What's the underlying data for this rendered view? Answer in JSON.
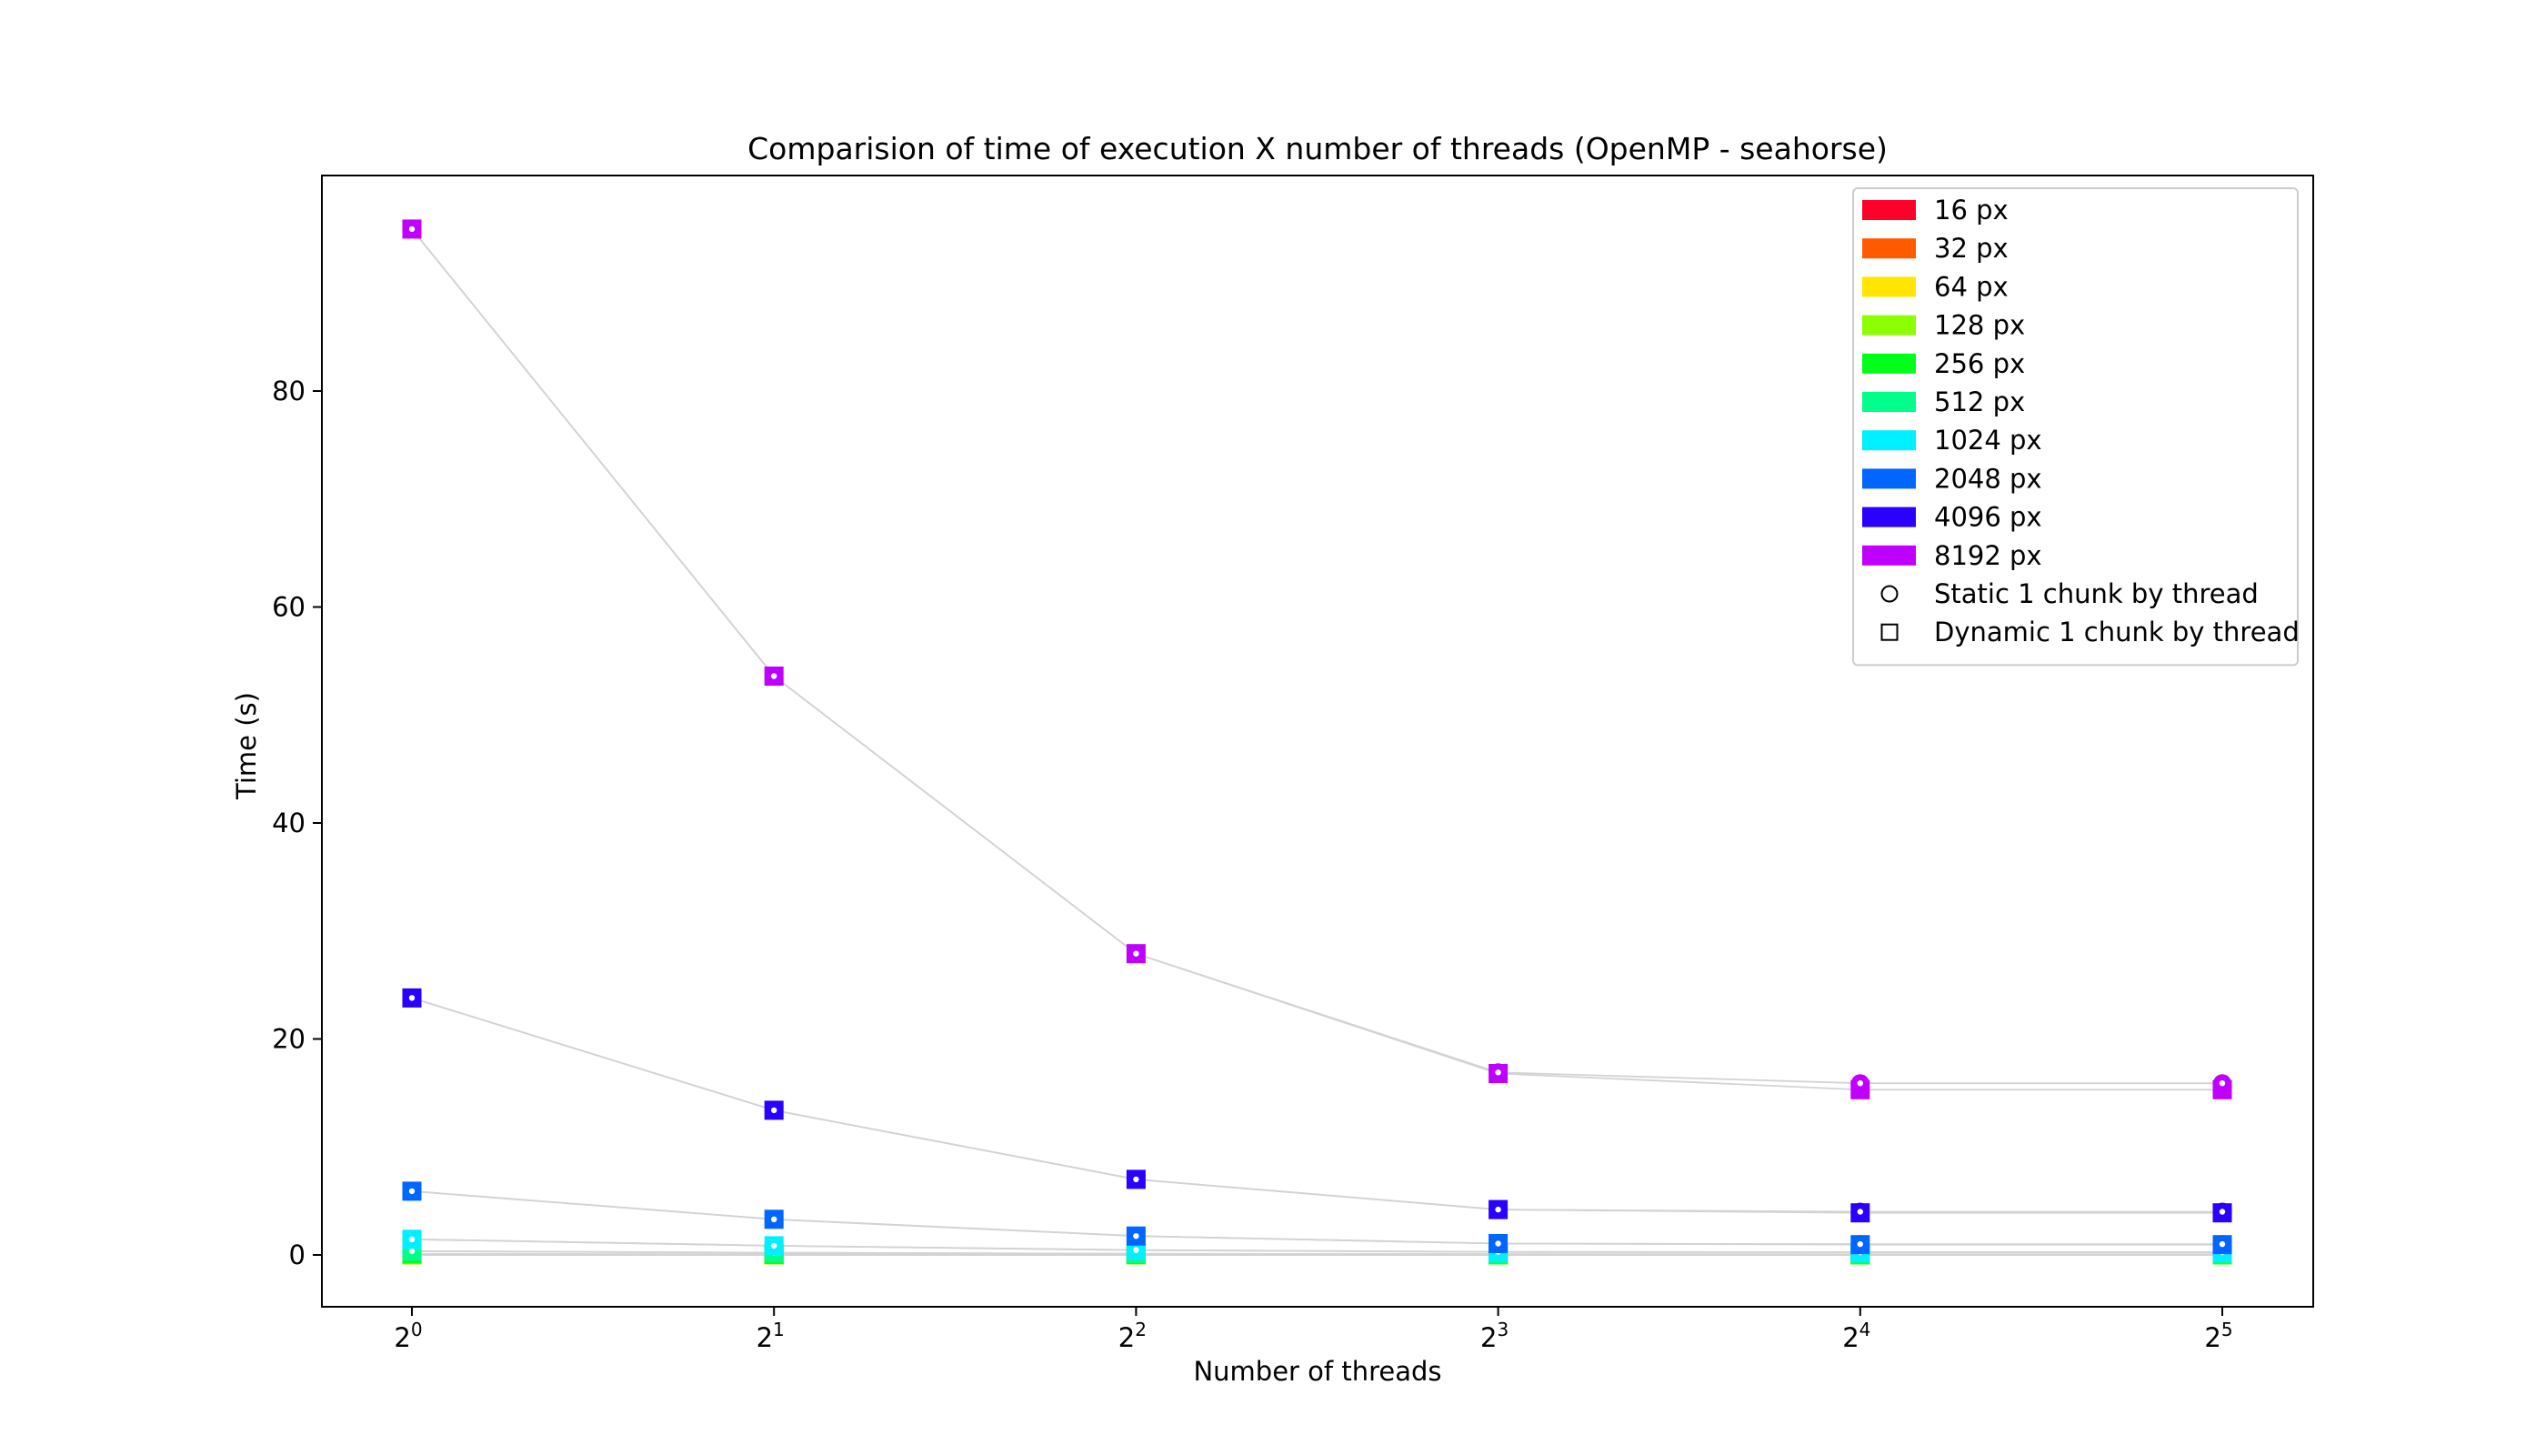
{
  "chart_data": {
    "type": "scatter",
    "title": "Comparision of time of execution X number of threads (OpenMP - seahorse)",
    "xlabel": "Number of threads",
    "ylabel": "Time (s)",
    "x_scale": "log2",
    "x": [
      1,
      2,
      4,
      8,
      16,
      32
    ],
    "xticks": [
      {
        "value": 1,
        "base": "2",
        "exp": "0"
      },
      {
        "value": 2,
        "base": "2",
        "exp": "1"
      },
      {
        "value": 4,
        "base": "2",
        "exp": "2"
      },
      {
        "value": 8,
        "base": "2",
        "exp": "3"
      },
      {
        "value": 16,
        "base": "2",
        "exp": "4"
      },
      {
        "value": 32,
        "base": "2",
        "exp": "5"
      }
    ],
    "ylim": [
      -4.8,
      100
    ],
    "yticks": [
      0,
      20,
      40,
      60,
      80
    ],
    "grid": false,
    "legend_position": "top-right",
    "series": [
      {
        "name": "16 px",
        "color": "#ff0029",
        "static": [
          0.0,
          0.0,
          0.0,
          0.0,
          0.0,
          0.0
        ],
        "dynamic": [
          0.0,
          0.0,
          0.0,
          0.0,
          0.0,
          0.0
        ]
      },
      {
        "name": "32 px",
        "color": "#ff5a00",
        "static": [
          0.0,
          0.0,
          0.0,
          0.0,
          0.0,
          0.0
        ],
        "dynamic": [
          0.0,
          0.0,
          0.0,
          0.0,
          0.0,
          0.0
        ]
      },
      {
        "name": "64 px",
        "color": "#ffe500",
        "static": [
          0.01,
          0.01,
          0.0,
          0.0,
          0.0,
          0.0
        ],
        "dynamic": [
          0.01,
          0.01,
          0.0,
          0.0,
          0.0,
          0.0
        ]
      },
      {
        "name": "128 px",
        "color": "#8cff00",
        "static": [
          0.02,
          0.01,
          0.01,
          0.0,
          0.0,
          0.0
        ],
        "dynamic": [
          0.02,
          0.01,
          0.01,
          0.0,
          0.0,
          0.0
        ]
      },
      {
        "name": "256 px",
        "color": "#00ff18",
        "static": [
          0.09,
          0.05,
          0.03,
          0.02,
          0.02,
          0.02
        ],
        "dynamic": [
          0.09,
          0.05,
          0.03,
          0.02,
          0.02,
          0.02
        ]
      },
      {
        "name": "512 px",
        "color": "#00ff8a",
        "static": [
          0.35,
          0.2,
          0.11,
          0.07,
          0.06,
          0.06
        ],
        "dynamic": [
          0.35,
          0.2,
          0.11,
          0.07,
          0.06,
          0.06
        ]
      },
      {
        "name": "1024 px",
        "color": "#00f0ff",
        "static": [
          1.45,
          0.85,
          0.45,
          0.28,
          0.25,
          0.25
        ],
        "dynamic": [
          1.45,
          0.85,
          0.45,
          0.28,
          0.25,
          0.25
        ]
      },
      {
        "name": "2048 px",
        "color": "#0066ff",
        "static": [
          5.9,
          3.3,
          1.75,
          1.05,
          1.0,
          1.0
        ],
        "dynamic": [
          5.9,
          3.3,
          1.75,
          1.05,
          0.95,
          0.95
        ]
      },
      {
        "name": "4096 px",
        "color": "#2a00ff",
        "static": [
          23.8,
          13.4,
          7.0,
          4.2,
          4.0,
          4.0
        ],
        "dynamic": [
          23.8,
          13.4,
          7.0,
          4.2,
          3.9,
          3.9
        ]
      },
      {
        "name": "8192 px",
        "color": "#bf00ff",
        "static": [
          95.0,
          53.6,
          27.9,
          16.9,
          15.9,
          15.9
        ],
        "dynamic": [
          95.0,
          53.6,
          27.9,
          16.8,
          15.3,
          15.3
        ]
      }
    ],
    "marker_legend": [
      {
        "label": "Static 1 chunk by thread",
        "marker": "circle"
      },
      {
        "label": "Dynamic 1 chunk by thread",
        "marker": "square"
      }
    ],
    "connector_color": "#d3d3d3"
  }
}
